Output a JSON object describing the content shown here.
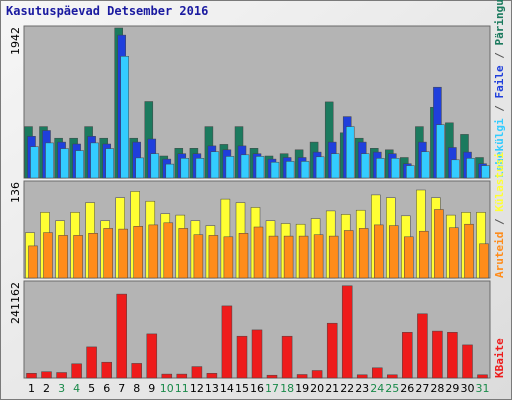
{
  "chart_data": {
    "type": "bar",
    "title": "Kasutuspäevad Detsember 2016",
    "categories": [
      "1",
      "2",
      "3",
      "4",
      "5",
      "6",
      "7",
      "8",
      "9",
      "10",
      "11",
      "12",
      "13",
      "14",
      "15",
      "16",
      "17",
      "18",
      "19",
      "20",
      "21",
      "22",
      "23",
      "24",
      "25",
      "26",
      "27",
      "28",
      "29",
      "30",
      "31"
    ],
    "weekend_days": [
      "3",
      "4",
      "10",
      "11",
      "17",
      "18",
      "24",
      "25",
      "31"
    ],
    "colors": {
      "pages": "#1b7a5e",
      "files": "#1f3fdc",
      "hits": "#33ccff",
      "visits": "#ffff33",
      "sites": "#ff8c1a",
      "kbytes": "#ee1b1b",
      "weekday_label": "#000000",
      "weekend_label": "#1a8a4a",
      "title": "#1a1aa0"
    },
    "panels": [
      {
        "id": "top",
        "ymax_label": "1942",
        "ymax": 1942,
        "legend": [
          {
            "label": "Päringuid",
            "color": "#1b7a5e"
          },
          {
            "label": "Faile",
            "color": "#1f3fdc"
          },
          {
            "label": "Lehekülgi",
            "color": "#33ccff"
          }
        ],
        "series": [
          {
            "name": "Päringuid",
            "values": [
              665,
              665,
              515,
              515,
              665,
              515,
              1942,
              515,
              990,
              285,
              385,
              385,
              665,
              435,
              665,
              385,
              285,
              315,
              365,
              465,
              985,
              585,
              515,
              385,
              365,
              265,
              665,
              915,
              715,
              565,
              265
            ]
          },
          {
            "name": "Faile",
            "values": [
              540,
              615,
              465,
              440,
              540,
              440,
              1850,
              465,
              505,
              245,
              315,
              315,
              415,
              365,
              415,
              315,
              245,
              265,
              265,
              335,
              465,
              795,
              465,
              335,
              315,
              185,
              465,
              1175,
              395,
              335,
              185
            ]
          },
          {
            "name": "Lehekülgi",
            "values": [
              405,
              455,
              380,
              355,
              455,
              380,
              1575,
              260,
              315,
              180,
              255,
              255,
              340,
              280,
              300,
              280,
              205,
              215,
              215,
              275,
              315,
              665,
              315,
              255,
              255,
              160,
              340,
              690,
              235,
              255,
              160
            ]
          }
        ]
      },
      {
        "id": "middle",
        "ymax_label": "136",
        "ymax": 136,
        "legend": [
          {
            "label": "Külastusi",
            "color": "#ffff33"
          },
          {
            "label": "Aruteid",
            "color": "#ff8c1a"
          }
        ],
        "series": [
          {
            "name": "Külastusi",
            "values": [
              65,
              94,
              82,
              94,
              108,
              82,
              115,
              124,
              110,
              92,
              90,
              82,
              75,
              113,
              108,
              101,
              82,
              78,
              77,
              85,
              96,
              91,
              97,
              119,
              115,
              89,
              126,
              115,
              90,
              94,
              94
            ]
          },
          {
            "name": "Aruteid",
            "values": [
              46,
              65,
              61,
              61,
              64,
              71,
              70,
              74,
              76,
              79,
              71,
              62,
              61,
              59,
              64,
              73,
              60,
              60,
              60,
              62,
              60,
              68,
              71,
              76,
              75,
              59,
              67,
              98,
              72,
              77,
              49
            ]
          }
        ]
      },
      {
        "id": "bottom",
        "ymax_label": "241162",
        "ymax": 241162,
        "legend": [
          {
            "label": "KBaite",
            "color": "#ee1b1b"
          }
        ],
        "series": [
          {
            "name": "KBaite",
            "values": [
              12000,
              16000,
              14000,
              36000,
              79000,
              40000,
              213000,
              37000,
              112000,
              10000,
              10000,
              29000,
              12000,
              183000,
              106000,
              122000,
              7000,
              106000,
              9000,
              19000,
              139000,
              234000,
              8000,
              26000,
              8000,
              116000,
              163000,
              119000,
              116000,
              84000,
              8000
            ]
          }
        ]
      }
    ]
  }
}
